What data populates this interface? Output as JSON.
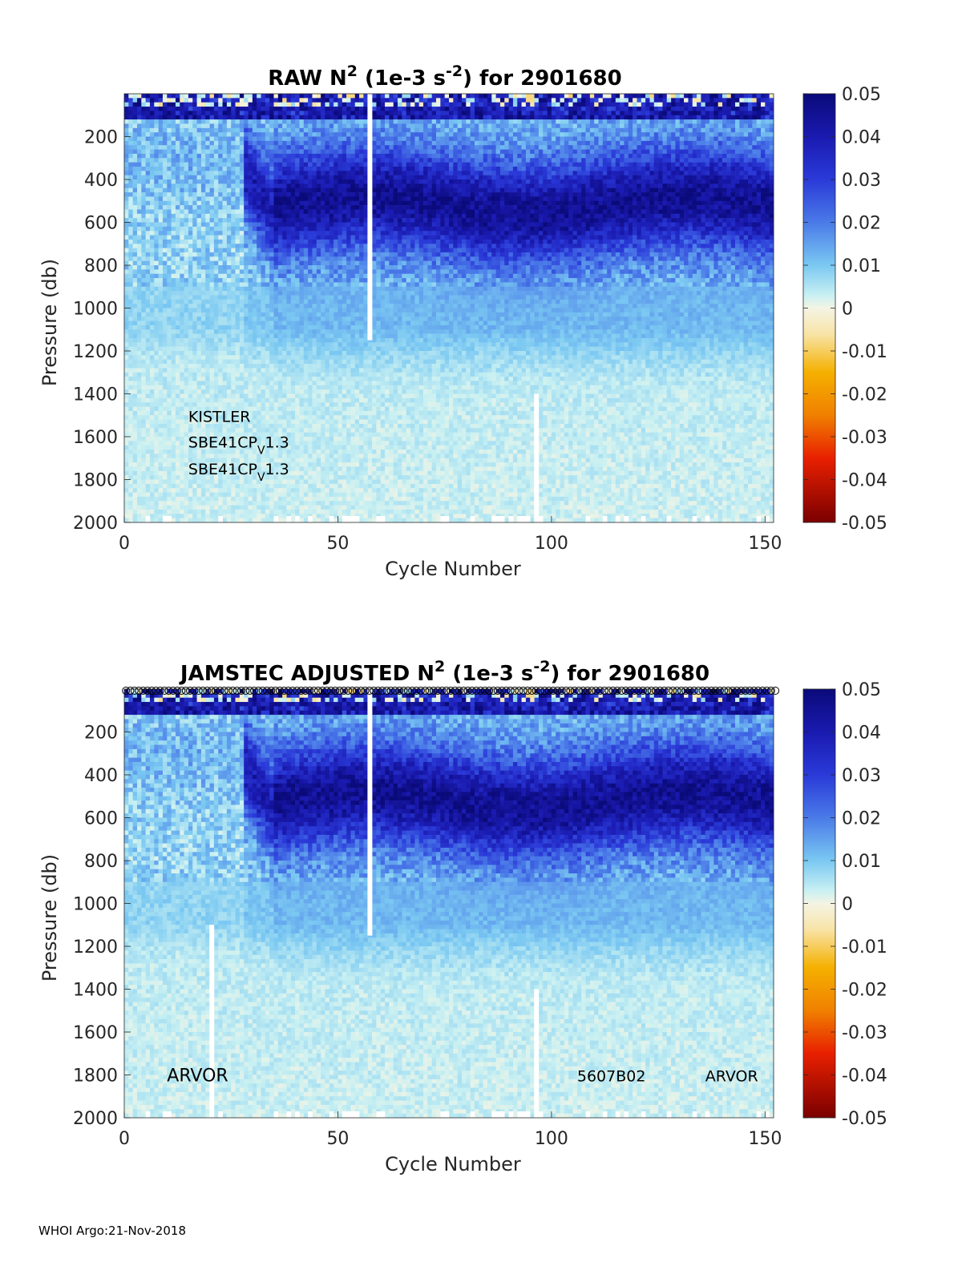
{
  "footer": "WHOI Argo:21-Nov-2018",
  "colorbar": {
    "ticks": [
      "0.05",
      "0.04",
      "0.03",
      "0.02",
      "0.01",
      "0",
      "-0.01",
      "-0.02",
      "-0.03",
      "-0.04",
      "-0.05"
    ],
    "range": [
      -0.05,
      0.05
    ]
  },
  "chart_data": [
    {
      "type": "heatmap",
      "title_parts": {
        "pre": "RAW N",
        "sup1": "2",
        "mid": " (1e-3 s",
        "sup2": "-2",
        "post": ") for 2901680"
      },
      "xlabel": "Cycle Number",
      "ylabel": "Pressure (db)",
      "xlim": [
        0,
        152
      ],
      "ylim": [
        0,
        2000
      ],
      "xticks": [
        "0",
        "50",
        "100",
        "150"
      ],
      "yticks": [
        "200",
        "400",
        "600",
        "800",
        "1000",
        "1200",
        "1400",
        "1600",
        "1800",
        "2000"
      ],
      "data_gaps": [
        {
          "cycle": 57.5,
          "from": 0,
          "to": 1150
        },
        {
          "cycle": 96.5,
          "from": 1400,
          "to": 2000
        }
      ],
      "annotations": [
        {
          "text": "KISTLER",
          "cycle": 15,
          "pressure": 1500
        },
        {
          "text": "SBE41CP",
          "sub": "V",
          "tail": "1.3",
          "cycle": 15,
          "pressure": 1620
        },
        {
          "text": "SBE41CP",
          "sub": "V",
          "tail": "1.3",
          "cycle": 15,
          "pressure": 1745
        }
      ],
      "markers": false
    },
    {
      "type": "heatmap",
      "title_parts": {
        "pre": "JAMSTEC  ADJUSTED N",
        "sup1": "2",
        "mid": " (1e-3 s",
        "sup2": "-2",
        "post": ") for 2901680"
      },
      "xlabel": "Cycle Number",
      "ylabel": "Pressure (db)",
      "xlim": [
        0,
        152
      ],
      "ylim": [
        0,
        2000
      ],
      "xticks": [
        "0",
        "50",
        "100",
        "150"
      ],
      "yticks": [
        "200",
        "400",
        "600",
        "800",
        "1000",
        "1200",
        "1400",
        "1600",
        "1800",
        "2000"
      ],
      "data_gaps": [
        {
          "cycle": 57.5,
          "from": 0,
          "to": 1150
        },
        {
          "cycle": 20.5,
          "from": 1100,
          "to": 2000
        },
        {
          "cycle": 96.5,
          "from": 1400,
          "to": 2000
        }
      ],
      "annotations": [
        {
          "text": "ARVOR",
          "cycle": 10,
          "pressure": 1800,
          "large": true
        },
        {
          "text": "5607B02",
          "cycle": 106,
          "pressure": 1800
        },
        {
          "text": "ARVOR",
          "cycle": 136,
          "pressure": 1800
        }
      ],
      "markers": true
    }
  ]
}
